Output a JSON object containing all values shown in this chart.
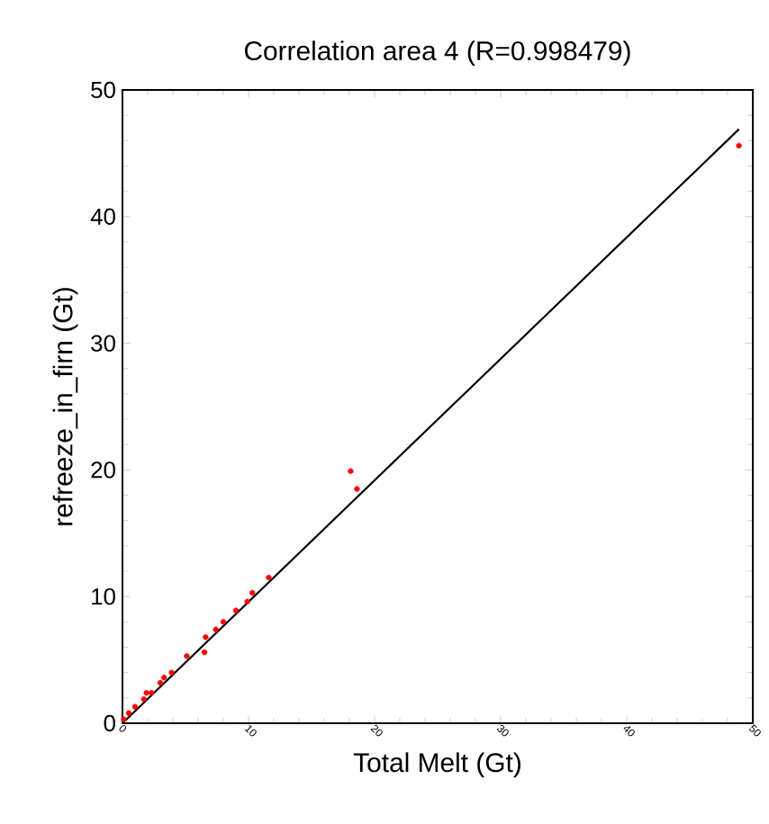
{
  "chart_data": {
    "type": "scatter",
    "title": "Correlation area 4 (R=0.998479)",
    "xlabel": "Total Melt (Gt)",
    "ylabel": "refreeze_in_firn (Gt)",
    "xlim": [
      0,
      50
    ],
    "ylim": [
      0,
      50
    ],
    "xticks": [
      0,
      10,
      20,
      30,
      40,
      50
    ],
    "yticks": [
      0,
      10,
      20,
      30,
      40,
      50
    ],
    "grid": false,
    "legend": false,
    "series": [
      {
        "marker": "circle",
        "color": "#ff0000",
        "x": [
          0.1,
          0.5,
          1.0,
          1.7,
          1.9,
          2.3,
          3.0,
          3.3,
          3.9,
          5.1,
          6.5,
          6.6,
          7.4,
          8.0,
          9.0,
          9.9,
          10.3,
          11.6,
          18.1,
          18.6,
          48.9
        ],
        "values": [
          0.3,
          0.8,
          1.3,
          1.9,
          2.4,
          2.4,
          3.2,
          3.6,
          4.0,
          5.3,
          5.6,
          6.8,
          7.4,
          8.0,
          8.9,
          9.6,
          10.3,
          11.5,
          19.9,
          18.5,
          45.6
        ]
      },
      {
        "type": "line",
        "marker": "none",
        "color": "#000000",
        "x": [
          0,
          48.9
        ],
        "values": [
          0,
          46.9
        ]
      }
    ]
  }
}
